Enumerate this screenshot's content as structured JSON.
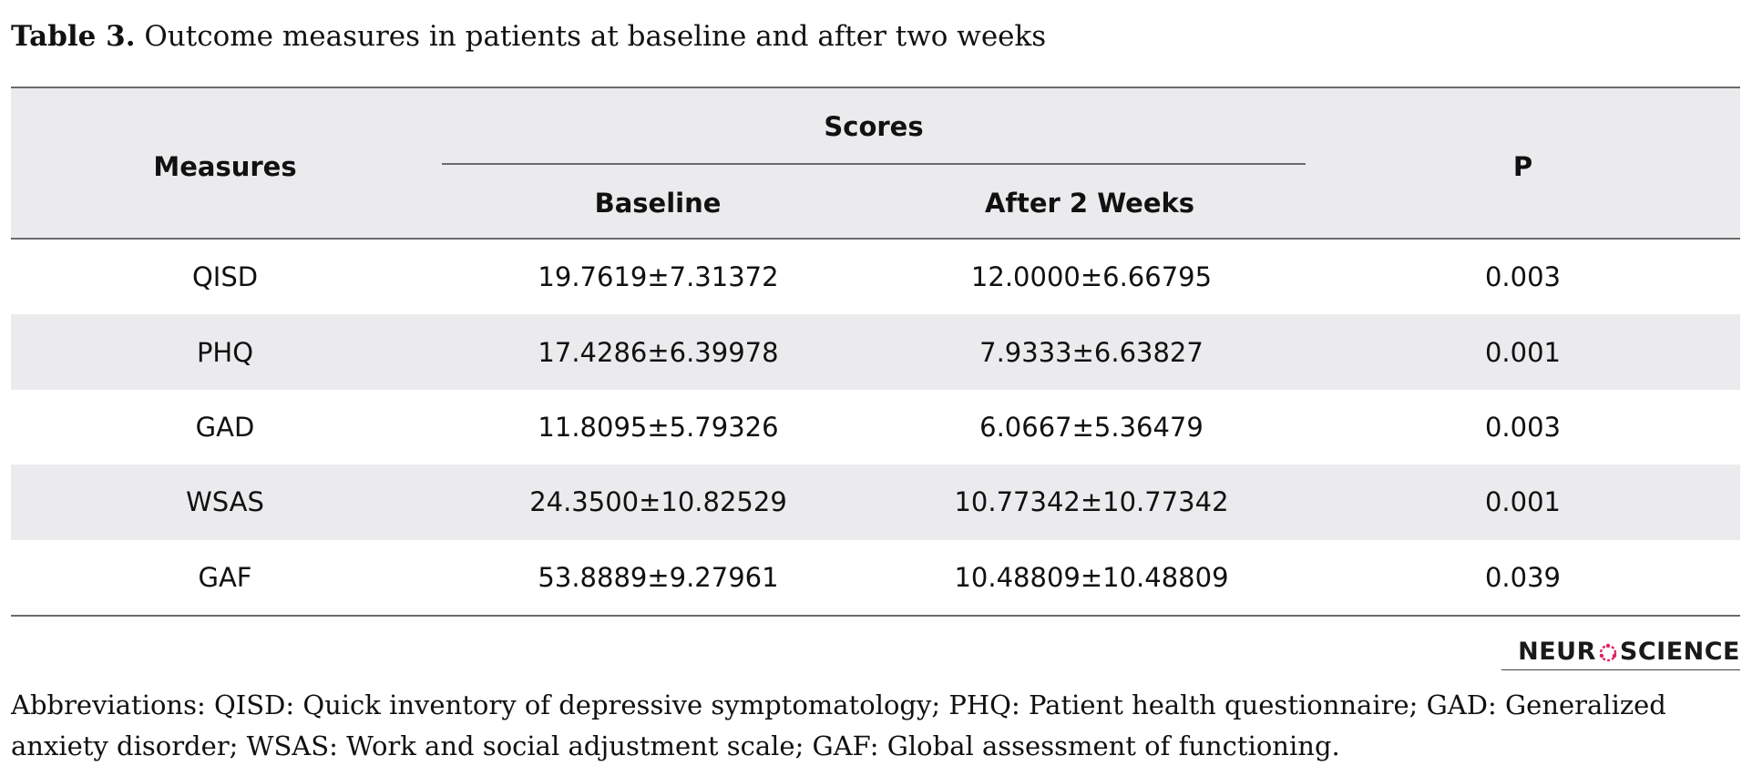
{
  "caption": {
    "label": "Table 3.",
    "text": "Outcome measures in patients at baseline and after two weeks"
  },
  "table": {
    "headers": {
      "measures": "Measures",
      "scores": "Scores",
      "baseline": "Baseline",
      "after": "After 2 Weeks",
      "p": "P"
    },
    "rows": [
      {
        "measure": "QISD",
        "baseline": "19.7619±7.31372",
        "after": "12.0000±6.66795",
        "p": "0.003"
      },
      {
        "measure": "PHQ",
        "baseline": "17.4286±6.39978",
        "after": "7.9333±6.63827",
        "p": "0.001"
      },
      {
        "measure": "GAD",
        "baseline": "11.8095±5.79326",
        "after": "6.0667±5.36479",
        "p": "0.003"
      },
      {
        "measure": "WSAS",
        "baseline": "24.3500±10.82529",
        "after": "10.77342±10.77342",
        "p": "0.001"
      },
      {
        "measure": "GAF",
        "baseline": "53.8889±9.27961",
        "after": "10.48809±10.48809",
        "p": "0.039"
      }
    ]
  },
  "logo": {
    "left_text": "NEUR",
    "right_text": "SCIENCE",
    "ring_color": "#e0245e"
  },
  "footnote": "Abbreviations: QISD: Quick inventory of depressive symptomatology; PHQ: Patient health questionnaire; GAD: Generalized anxiety disorder; WSAS: Work and social adjustment scale; GAF: Global assessment of functioning."
}
